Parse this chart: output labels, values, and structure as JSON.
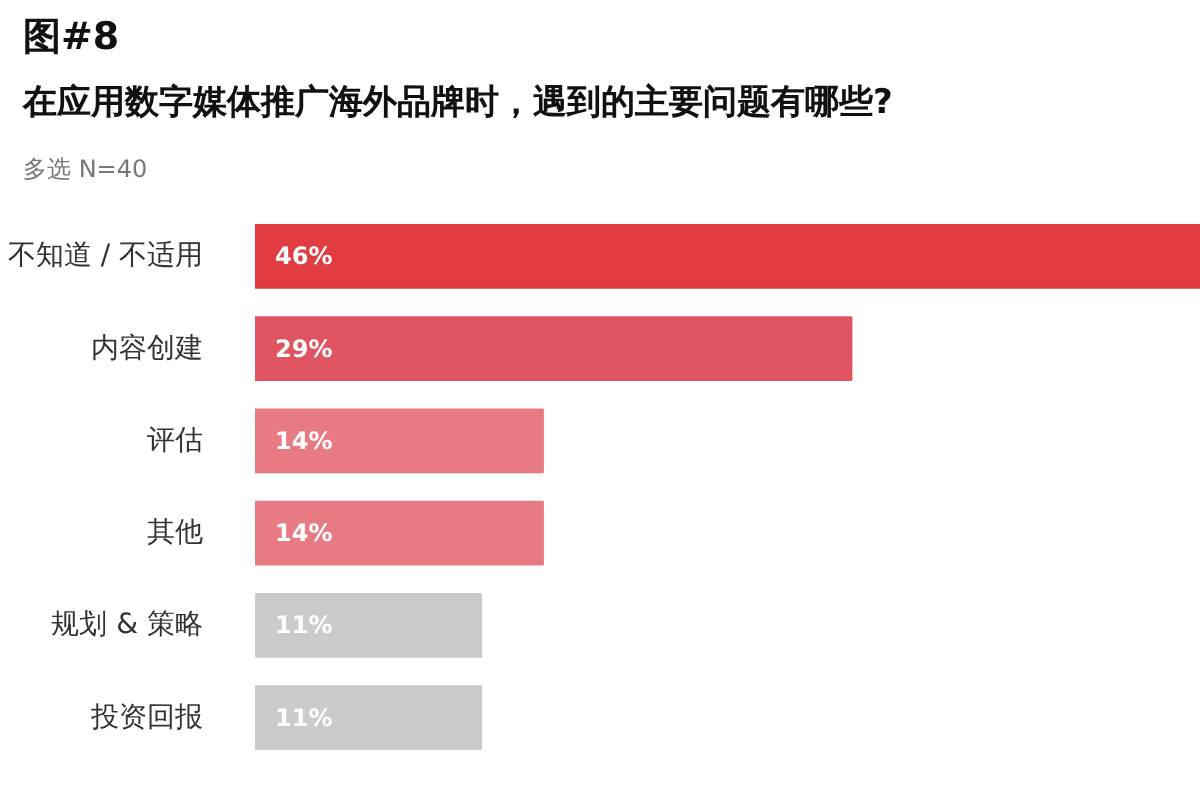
{
  "chart_data": {
    "type": "bar",
    "orientation": "horizontal",
    "title": "图#8",
    "subtitle": "在应用数字媒体推广海外品牌时，遇到的主要问题有哪些?",
    "annotations": [
      "多选  N=40"
    ],
    "categories": [
      "不知道 / 不适用",
      "内容创建",
      "评估",
      "其他",
      "规划 & 策略",
      "投资回报"
    ],
    "values": [
      46,
      29,
      14,
      14,
      11,
      11
    ],
    "value_labels": [
      "46%",
      "29%",
      "14%",
      "14%",
      "11%",
      "11%"
    ],
    "colors": [
      "#e03c41",
      "#e05462",
      "#e87a84",
      "#e87a84",
      "#cccaca",
      "#cccaca"
    ],
    "tick_labels": "y",
    "grid": false
  }
}
